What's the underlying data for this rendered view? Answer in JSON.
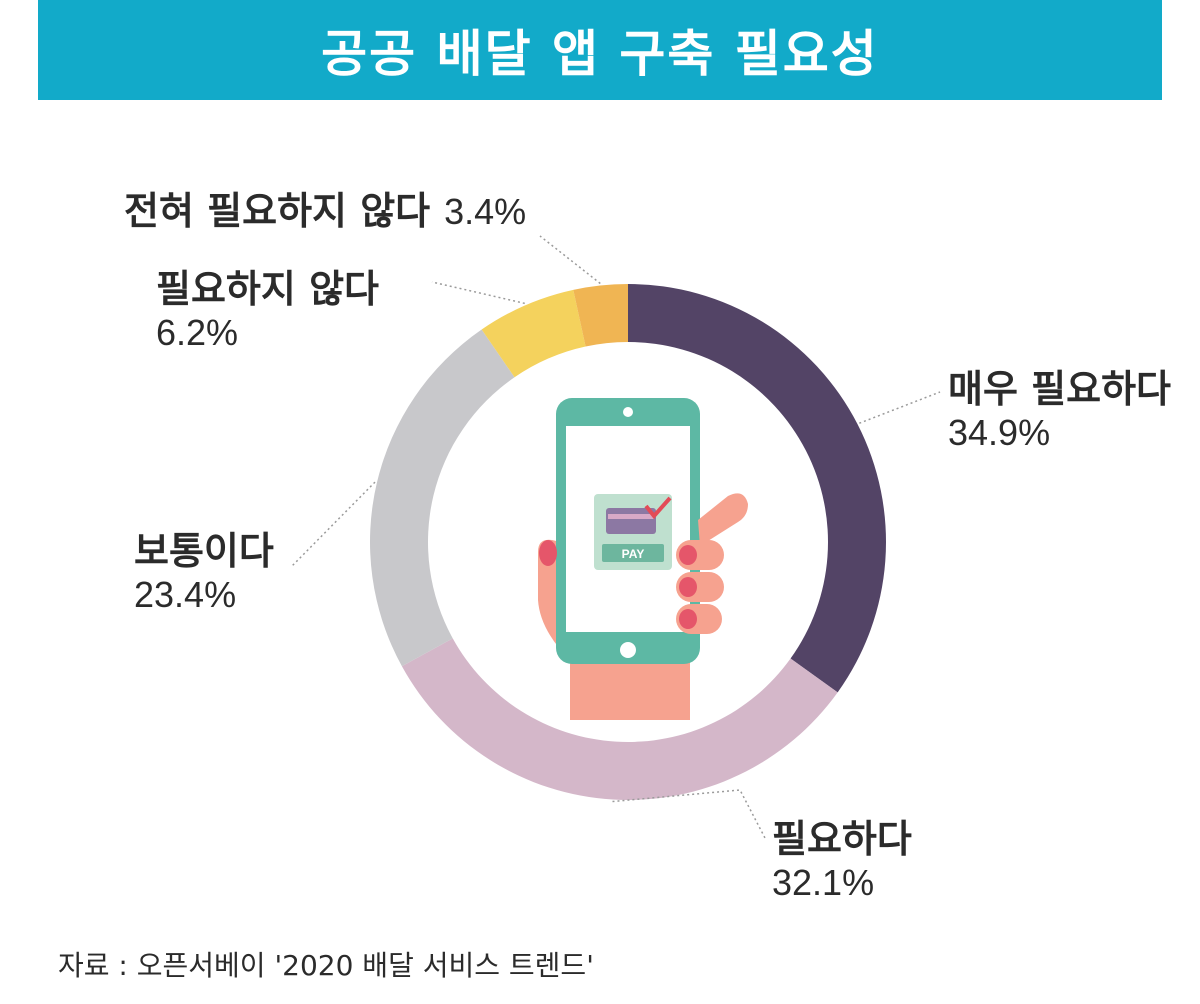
{
  "title": "공공 배달 앱 구축 필요성",
  "source": "자료 : 오픈서베이 '2020 배달 서비스 트렌드'",
  "icon": "smartphone-pay-hand-icon",
  "pay_label": "PAY",
  "colors": {
    "title_bg": "#12aac9",
    "leader": "#9a9a9a"
  },
  "chart_data": {
    "type": "pie",
    "variant": "donut",
    "unit": "%",
    "slices": [
      {
        "label": "매우 필요하다",
        "value": 34.9,
        "display": "34.9%",
        "color": "#534466"
      },
      {
        "label": "필요하다",
        "value": 32.1,
        "display": "32.1%",
        "color": "#d4b7c9"
      },
      {
        "label": "보통이다",
        "value": 23.4,
        "display": "23.4%",
        "color": "#c8c8cb"
      },
      {
        "label": "필요하지 않다",
        "value": 6.2,
        "display": "6.2%",
        "color": "#f4d25d"
      },
      {
        "label": "전혀 필요하지 않다",
        "value": 3.4,
        "display": "3.4%",
        "color": "#f0b553"
      }
    ]
  }
}
